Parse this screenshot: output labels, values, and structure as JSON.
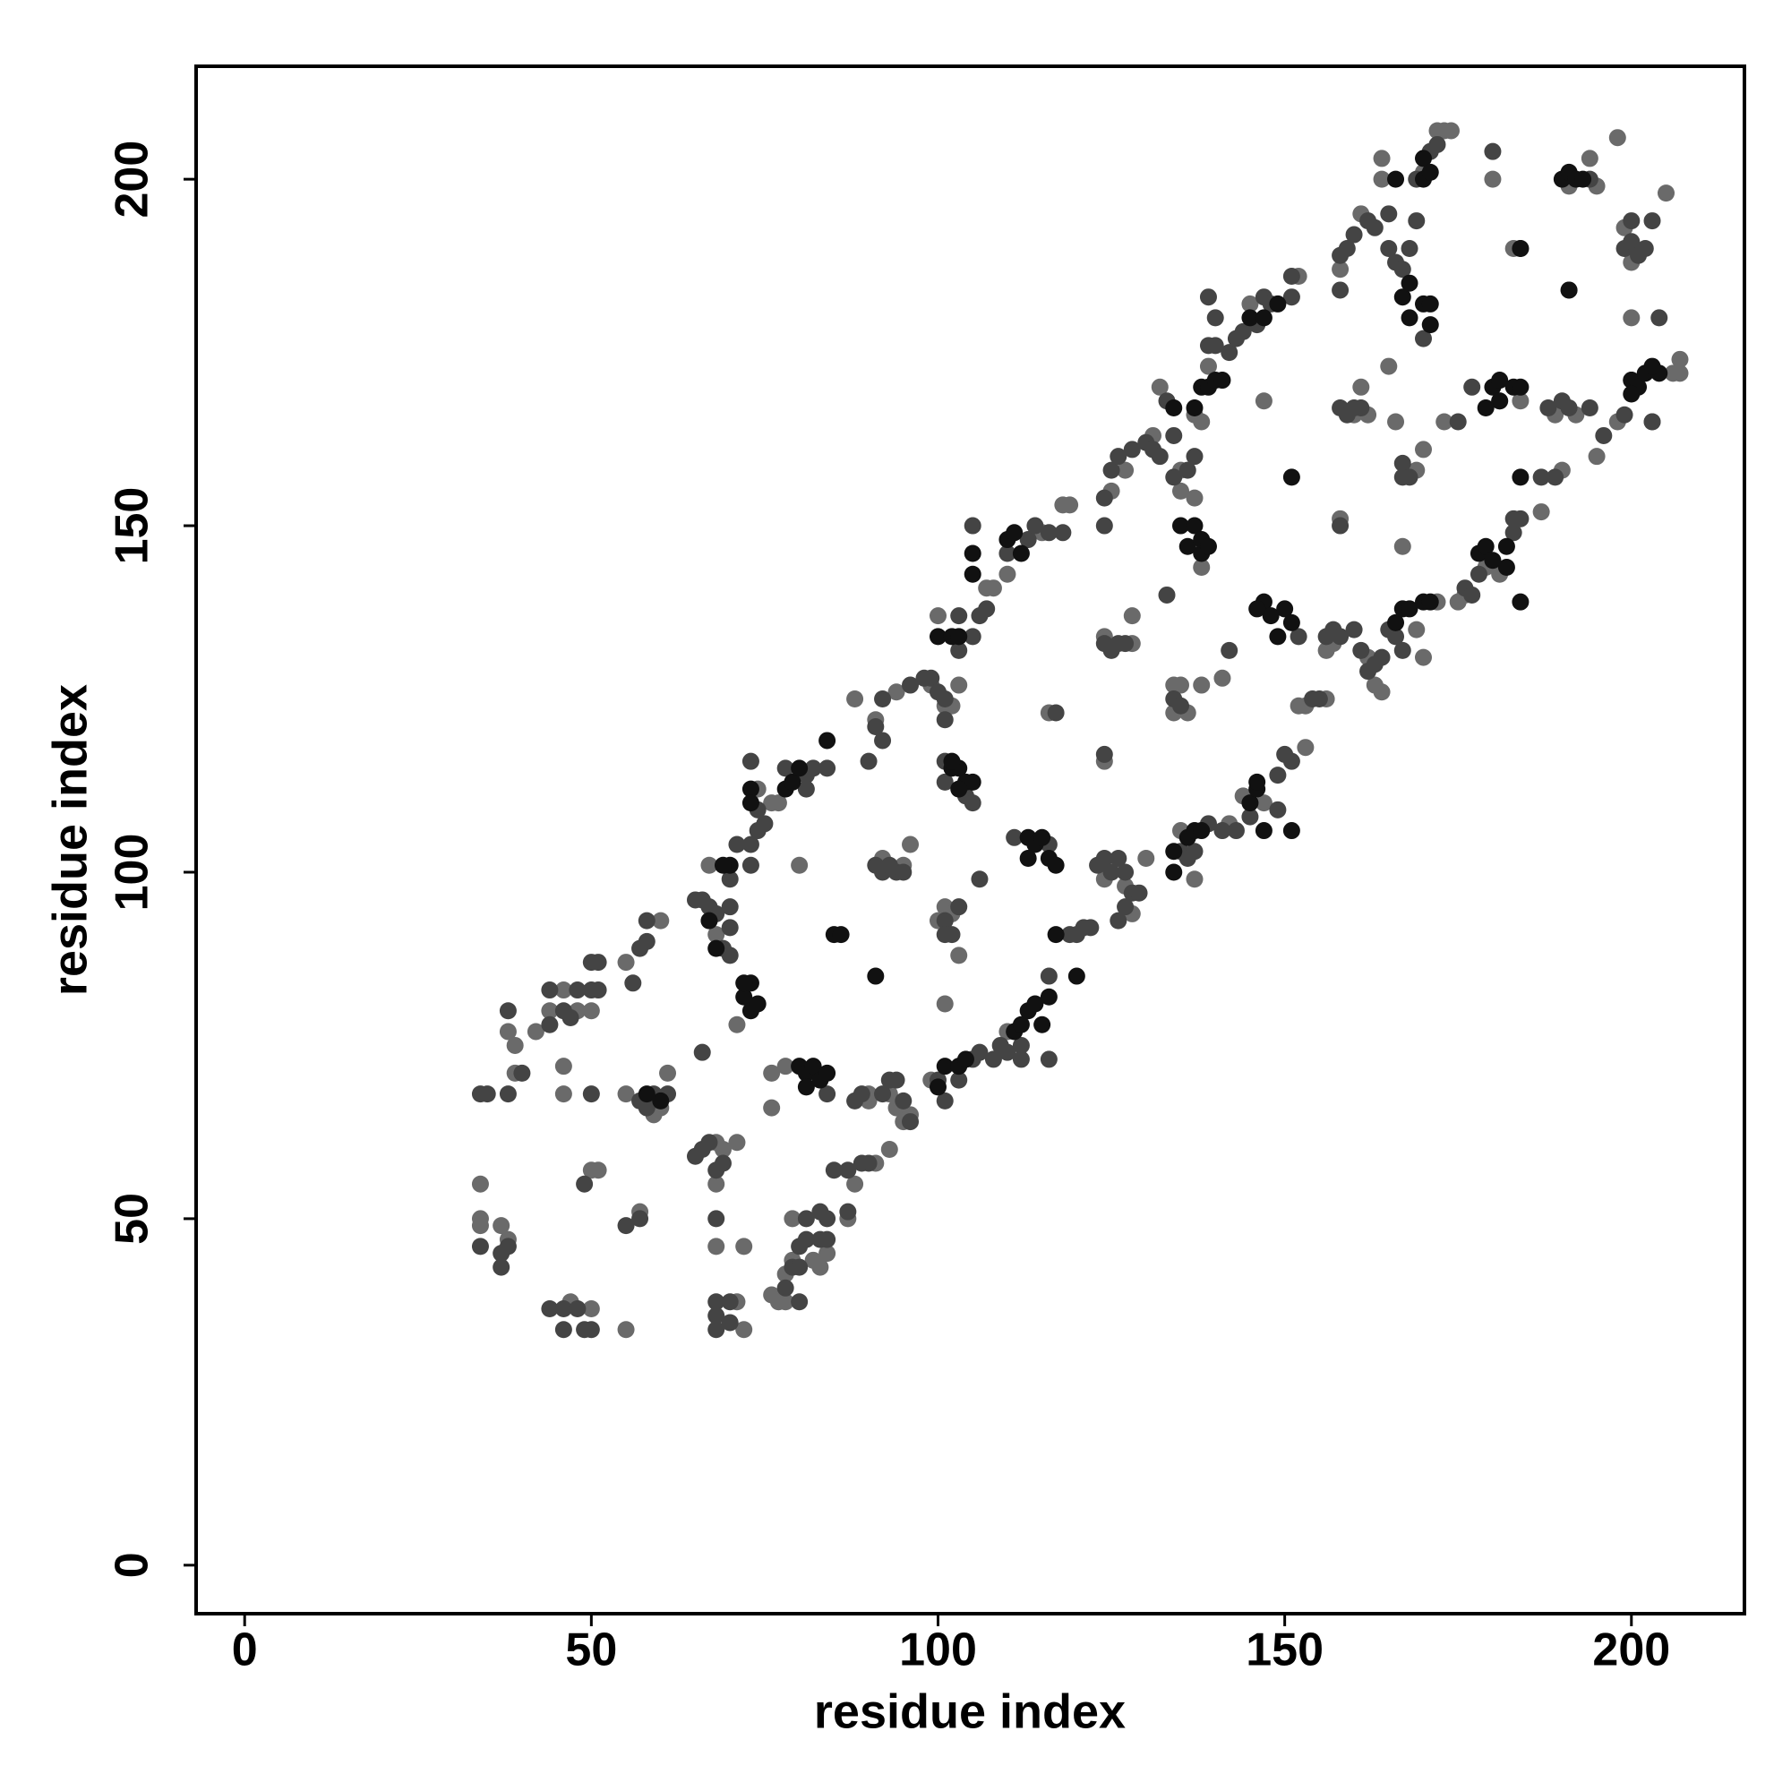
{
  "chart_data": {
    "type": "scatter",
    "xlabel": "residue index",
    "ylabel": "residue index",
    "xlim": [
      -7,
      216.3
    ],
    "ylim": [
      -7,
      216.3
    ],
    "xticks": [
      0,
      50,
      100,
      150,
      200
    ],
    "yticks": [
      0,
      50,
      100,
      150,
      200
    ],
    "grid": false,
    "series": [
      {
        "color": "#6a6a6a",
        "x": [
          34,
          34,
          34,
          37,
          38,
          38,
          39,
          39,
          42,
          44,
          46,
          48,
          46,
          46,
          50,
          50,
          51,
          47,
          50,
          55,
          57,
          55,
          60,
          55,
          59,
          60,
          61,
          67,
          68,
          71,
          69,
          68,
          68,
          68,
          71,
          72,
          72,
          71,
          67,
          74,
          76,
          77,
          80,
          76,
          76,
          78,
          79,
          79,
          84,
          76,
          77,
          78,
          78,
          82,
          83,
          88,
          87,
          91,
          93,
          90,
          90,
          93,
          94,
          96,
          95,
          88,
          91,
          92,
          95,
          96,
          94,
          99,
          100,
          103,
          102,
          101,
          101,
          100,
          102,
          101,
          99,
          103,
          108,
          107,
          110,
          110,
          115,
          118,
          119,
          116,
          124,
          124,
          124,
          128,
          128,
          125,
          127,
          127,
          128,
          130,
          131,
          132,
          135,
          135,
          137,
          134,
          134,
          135,
          136,
          138,
          135,
          137,
          142,
          144,
          147,
          153,
          138,
          138,
          139,
          137,
          145,
          152,
          147,
          141,
          152,
          153,
          156,
          156,
          157,
          158,
          160,
          162,
          161,
          158,
          161,
          164,
          164,
          170,
          173,
          172,
          174,
          165,
          166,
          169,
          170,
          167,
          169,
          170,
          172,
          162,
          163,
          164,
          175,
          176,
          179,
          181,
          187,
          190,
          189,
          192,
          191,
          195,
          194,
          195,
          198,
          203,
          206,
          207,
          207,
          199,
          200,
          205,
          198,
          200,
          180,
          183,
          181,
          184,
          173,
          191
        ],
        "values": [
          55,
          50,
          49,
          49,
          47,
          77,
          75,
          71,
          77,
          80,
          83,
          80,
          72,
          68,
          80,
          57,
          57,
          38,
          37,
          34,
          51,
          87,
          93,
          68,
          65,
          66,
          71,
          93,
          91,
          78,
          60,
          61,
          55,
          46,
          61,
          46,
          34,
          38,
          101,
          112,
          110,
          110,
          101,
          66,
          71,
          72,
          44,
          50,
          45,
          39,
          38,
          38,
          42,
          44,
          43,
          55,
          50,
          58,
          60,
          67,
          68,
          68,
          66,
          65,
          64,
          125,
          122,
          102,
          101,
          104,
          126,
          127,
          137,
          127,
          124,
          124,
          95,
          93,
          94,
          81,
          70,
          88,
          141,
          141,
          143,
          77,
          149,
          153,
          153,
          123,
          99,
          116,
          134,
          133,
          137,
          155,
          158,
          98,
          94,
          102,
          163,
          170,
          158,
          155,
          154,
          127,
          123,
          127,
          123,
          127,
          106,
          99,
          107,
          111,
          110,
          118,
          144,
          165,
          173,
          166,
          182,
          186,
          168,
          128,
          124,
          124,
          125,
          132,
          133,
          151,
          166,
          166,
          170,
          187,
          195,
          200,
          203,
          201,
          207,
          207,
          207,
          173,
          165,
          158,
          161,
          147,
          135,
          131,
          139,
          131,
          127,
          126,
          139,
          140,
          144,
          143,
          152,
          158,
          166,
          166,
          199,
          199,
          203,
          160,
          165,
          165,
          172,
          174,
          172,
          193,
          188,
          198,
          206,
          180,
          200,
          190,
          168,
          168,
          165,
          184
        ]
      },
      {
        "color": "#444444",
        "x": [
          34,
          35,
          34,
          37,
          37,
          38,
          38,
          38,
          40,
          44,
          44,
          46,
          48,
          47,
          50,
          51,
          50,
          51,
          49,
          44,
          46,
          46,
          48,
          49,
          50,
          50,
          55,
          57,
          57,
          58,
          58,
          56,
          57,
          58,
          59,
          61,
          65,
          66,
          67,
          68,
          69,
          70,
          70,
          70,
          65,
          66,
          67,
          68,
          69,
          68,
          68,
          68,
          68,
          70,
          70,
          66,
          70,
          71,
          73,
          73,
          74,
          74,
          73,
          75,
          78,
          81,
          81,
          82,
          84,
          84,
          79,
          80,
          81,
          81,
          84,
          84,
          83,
          78,
          80,
          80,
          83,
          85,
          87,
          89,
          90,
          87,
          88,
          89,
          92,
          93,
          94,
          95,
          96,
          91,
          92,
          92,
          90,
          91,
          92,
          93,
          94,
          95,
          96,
          98,
          99,
          100,
          101,
          103,
          103,
          101,
          101,
          101,
          104,
          105,
          101,
          101,
          102,
          103,
          100,
          101,
          103,
          105,
          106,
          106,
          105,
          106,
          107,
          105,
          108,
          109,
          110,
          112,
          112,
          116,
          116,
          110,
          113,
          114,
          116,
          118,
          117,
          111,
          116,
          119,
          120,
          121,
          122,
          123,
          124,
          125,
          124,
          124,
          125,
          126,
          127,
          124,
          124,
          125,
          126,
          128,
          126,
          127,
          128,
          129,
          126,
          127,
          130,
          131,
          132,
          133,
          134,
          134,
          136,
          137,
          133,
          134,
          135,
          135,
          136,
          137,
          139,
          141,
          143,
          145,
          149,
          149,
          150,
          151,
          139,
          140,
          140,
          139,
          142,
          143,
          144,
          146,
          147,
          148,
          151,
          151,
          152,
          142,
          154,
          155,
          156,
          157,
          158,
          158,
          158,
          159,
          160,
          161,
          158,
          158,
          159,
          160,
          162,
          163,
          165,
          165,
          166,
          167,
          168,
          169,
          169,
          171,
          172,
          170,
          167,
          167,
          168,
          160,
          161,
          162,
          163,
          164,
          165,
          166,
          167,
          176,
          177,
          178,
          183,
          183,
          184,
          187,
          189,
          188,
          190,
          191,
          194,
          194,
          196,
          199,
          200,
          203,
          199,
          200,
          200,
          201,
          202,
          203,
          204,
          180,
          184,
          177,
          175
        ],
        "values": [
          68,
          68,
          46,
          45,
          43,
          46,
          80,
          68,
          71,
          78,
          83,
          80,
          83,
          79,
          87,
          87,
          83,
          83,
          55,
          37,
          37,
          34,
          37,
          34,
          34,
          68,
          49,
          50,
          89,
          90,
          93,
          84,
          67,
          66,
          68,
          68,
          96,
          96,
          95,
          94,
          89,
          92,
          88,
          95,
          59,
          60,
          61,
          57,
          58,
          50,
          38,
          36,
          34,
          38,
          35,
          74,
          99,
          104,
          101,
          104,
          106,
          109,
          116,
          107,
          115,
          114,
          112,
          115,
          115,
          68,
          43,
          46,
          47,
          50,
          50,
          47,
          47,
          40,
          38,
          43,
          51,
          57,
          57,
          58,
          58,
          51,
          67,
          68,
          68,
          70,
          70,
          67,
          64,
          121,
          125,
          119,
          116,
          101,
          100,
          101,
          100,
          100,
          127,
          128,
          128,
          126,
          125,
          137,
          132,
          122,
          116,
          113,
          111,
          110,
          93,
          91,
          91,
          95,
          70,
          67,
          70,
          73,
          74,
          99,
          134,
          137,
          138,
          150,
          73,
          75,
          74,
          75,
          73,
          85,
          73,
          146,
          148,
          150,
          149,
          149,
          123,
          105,
          104,
          91,
          91,
          92,
          92,
          101,
          102,
          100,
          117,
          133,
          132,
          133,
          133,
          150,
          154,
          158,
          160,
          161,
          102,
          100,
          97,
          97,
          93,
          95,
          162,
          161,
          160,
          168,
          163,
          157,
          158,
          160,
          140,
          125,
          124,
          103,
          102,
          103,
          107,
          106,
          106,
          108,
          109,
          114,
          117,
          116,
          176,
          176,
          180,
          183,
          175,
          177,
          178,
          179,
          183,
          182,
          183,
          186,
          134,
          132,
          125,
          125,
          134,
          135,
          134,
          150,
          167,
          166,
          167,
          167,
          184,
          189,
          190,
          192,
          194,
          193,
          195,
          190,
          188,
          187,
          190,
          194,
          200,
          204,
          205,
          177,
          159,
          157,
          157,
          135,
          132,
          129,
          130,
          131,
          135,
          134,
          132,
          141,
          140,
          143,
          149,
          151,
          151,
          157,
          157,
          167,
          168,
          167,
          200,
          167,
          163,
          166,
          171,
          165,
          190,
          191,
          194,
          189,
          190,
          194,
          180,
          204,
          190,
          170,
          165
        ]
      },
      {
        "color": "#111111",
        "x": [
          72,
          73,
          73,
          72,
          74,
          80,
          81,
          82,
          83,
          81,
          84,
          102,
          103,
          104,
          105,
          103,
          102,
          113,
          114,
          113,
          115,
          116,
          117,
          135,
          136,
          137,
          138,
          138,
          139,
          147,
          148,
          149,
          150,
          151,
          146,
          167,
          168,
          168,
          170,
          171,
          171,
          180,
          181,
          181,
          183,
          184,
          179,
          105,
          105,
          110,
          111,
          112,
          84,
          78,
          79,
          80,
          73,
          73,
          100,
          102,
          103,
          101,
          100,
          103,
          104,
          111,
          112,
          113,
          114,
          115,
          116,
          117,
          120,
          134,
          134,
          136,
          137,
          138,
          145,
          146,
          146,
          147,
          151,
          134,
          137,
          138,
          139,
          140,
          141,
          145,
          147,
          149,
          151,
          166,
          167,
          168,
          170,
          171,
          178,
          179,
          180,
          182,
          182,
          184,
          184,
          190,
          191,
          192,
          193,
          191,
          200,
          201,
          200,
          202,
          204,
          203,
          170,
          170,
          171,
          166,
          184,
          85,
          86,
          91,
          70,
          69,
          67,
          68,
          60,
          58
        ],
        "values": [
          82,
          80,
          84,
          84,
          81,
          72,
          71,
          72,
          70,
          69,
          71,
          115,
          115,
          113,
          113,
          112,
          116,
          105,
          104,
          102,
          105,
          102,
          101,
          150,
          147,
          150,
          146,
          148,
          147,
          139,
          137,
          134,
          138,
          136,
          138,
          183,
          185,
          180,
          182,
          179,
          182,
          170,
          171,
          168,
          170,
          170,
          167,
          146,
          143,
          148,
          149,
          146,
          119,
          112,
          113,
          115,
          112,
          110,
          134,
          134,
          134,
          72,
          69,
          72,
          73,
          77,
          78,
          80,
          81,
          78,
          82,
          91,
          85,
          103,
          100,
          105,
          106,
          106,
          110,
          112,
          113,
          106,
          106,
          167,
          167,
          170,
          170,
          171,
          171,
          180,
          180,
          182,
          157,
          136,
          138,
          138,
          139,
          139,
          146,
          147,
          145,
          144,
          147,
          157,
          139,
          200,
          201,
          200,
          200,
          184,
          171,
          170,
          169,
          172,
          172,
          173,
          200,
          203,
          201,
          200,
          190,
          91,
          91,
          85,
          101,
          101,
          93,
          89,
          67,
          68
        ]
      }
    ]
  }
}
